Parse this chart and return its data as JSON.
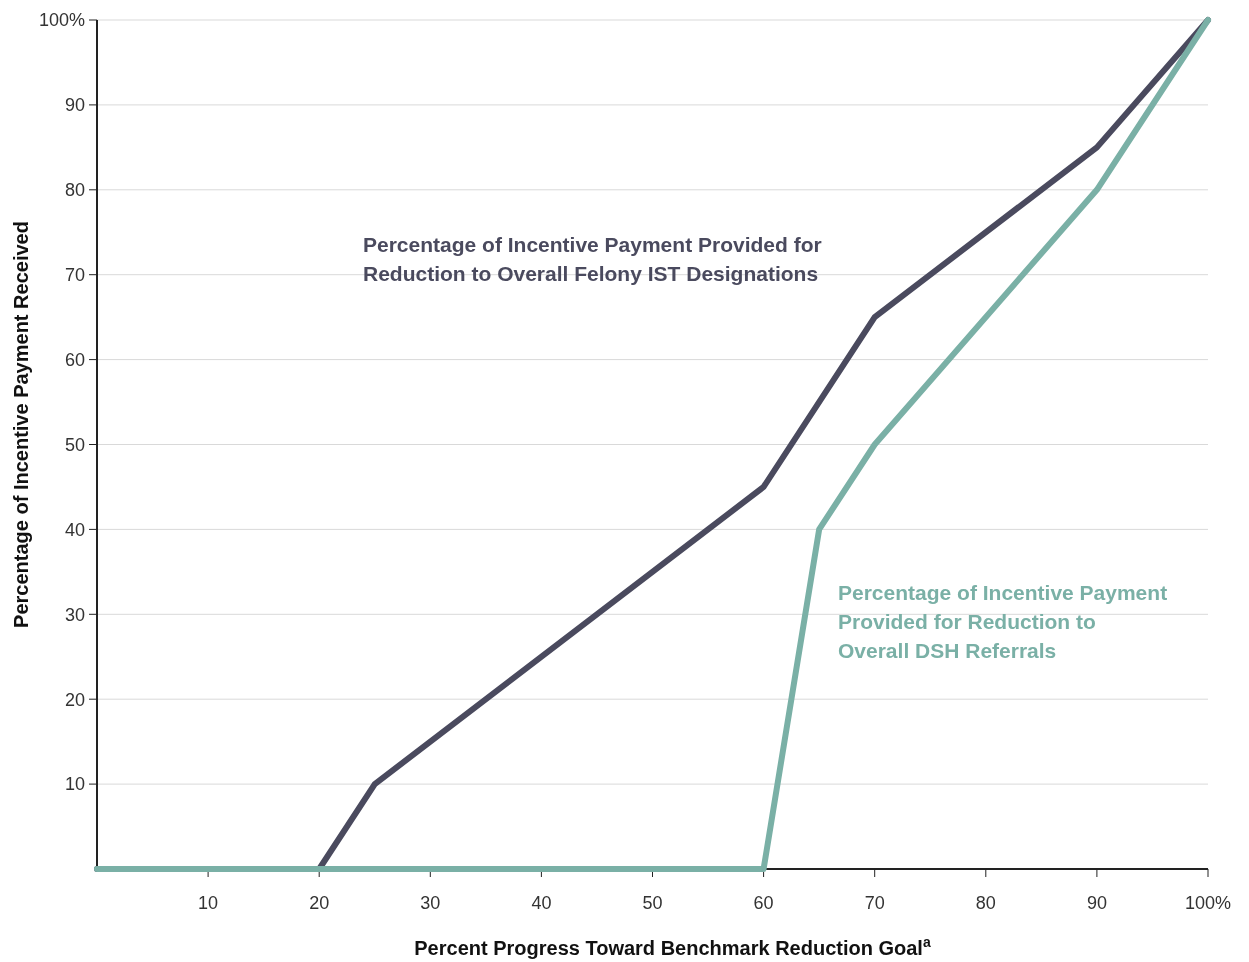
{
  "chart_data": {
    "type": "line",
    "xlabel": "Percent Progress Toward Benchmark Reduction Goal$^{a}$",
    "ylabel": "Percentage of Incentive Payment Received",
    "xlim": [
      0,
      100
    ],
    "ylim": [
      0,
      100
    ],
    "xticks": [
      10,
      20,
      30,
      40,
      50,
      60,
      70,
      80,
      90,
      {
        "value": 100,
        "label": "100%"
      }
    ],
    "yticks": [
      10,
      20,
      30,
      40,
      50,
      60,
      70,
      80,
      90,
      {
        "value": 100,
        "label": "100%"
      }
    ],
    "grid": "y",
    "marker": "none",
    "line_style": "solid",
    "series": [
      {
        "name": "Percentage of Incentive Payment Provided for Reduction to Overall Felony IST Designations",
        "color": "#4a4a5e",
        "x": [
          0,
          20,
          25,
          60,
          70,
          90,
          100
        ],
        "values": [
          0,
          0,
          10,
          45,
          65,
          85,
          100
        ]
      },
      {
        "name": "Percentage of Incentive Payment Provided for Reduction to Overall DSH Referrals",
        "color": "#7ab0a6",
        "x": [
          0,
          60,
          65,
          70,
          90,
          100
        ],
        "values": [
          0,
          0,
          40,
          50,
          80,
          100
        ]
      }
    ]
  }
}
